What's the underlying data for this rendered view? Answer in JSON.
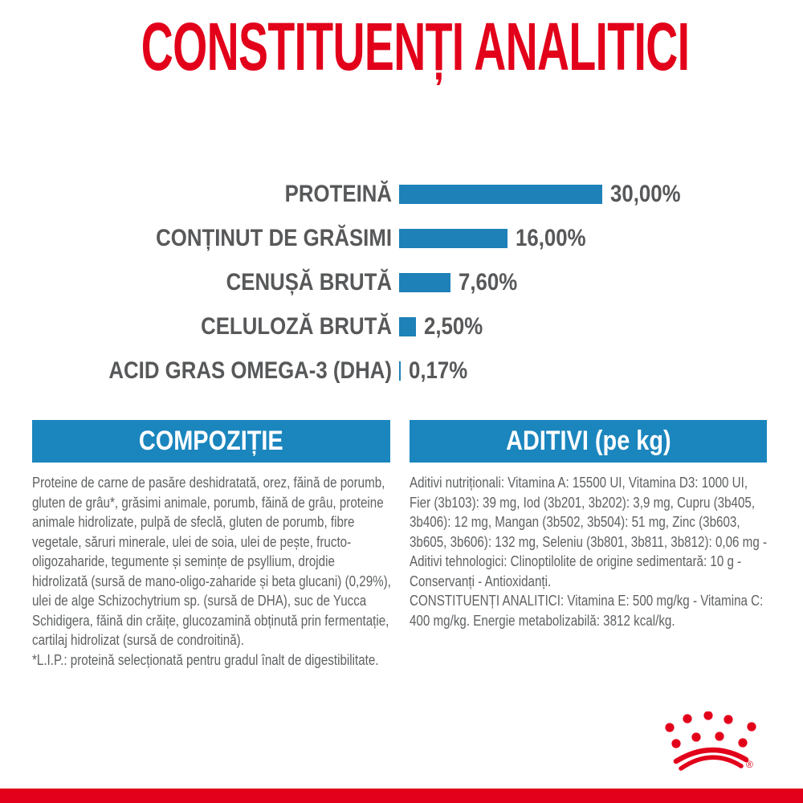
{
  "page": {
    "title": "CONSTITUENȚI ANALITICI"
  },
  "chart_data": {
    "type": "bar",
    "orientation": "horizontal",
    "title": "CONSTITUENȚI ANALITICI",
    "categories": [
      "PROTEINĂ",
      "CONȚINUT DE GRĂSIMI",
      "CENUȘĂ BRUTĂ",
      "CELULOZĂ BRUTĂ",
      "ACID GRAS OMEGA-3 (DHA)"
    ],
    "values": [
      30.0,
      16.0,
      7.6,
      2.5,
      0.17
    ],
    "value_labels": [
      "30,00%",
      "16,00%",
      "7,60%",
      "2,50%",
      "0,17%"
    ],
    "unit": "%",
    "xlim": [
      0,
      30
    ],
    "grid": false,
    "legend": false,
    "bar_color": "#1E81B8"
  },
  "sections": {
    "composition": {
      "header": "COMPOZIȚIE",
      "body": "Proteine de carne de pasăre deshidratată, orez, făină de porumb, gluten de grâu*, grăsimi animale, porumb, făină de grâu, proteine animale hidrolizate, pulpă de sfeclă, gluten de porumb, fibre vegetale, săruri minerale, ulei de soia, ulei de pește, fructo-oligozaharide, tegumente și semințe de psyllium, drojdie hidrolizată (sursă de mano-oligo-zaharide și beta glucani) (0,29%), ulei de alge Schizochytrium sp. (sursă de DHA), suc de Yucca Schidigera, făină din crăițe, glucozamină obținută prin fermentație, cartilaj hidrolizat (sursă de condroitină).",
      "footnote": "*L.I.P.: proteină selecționată pentru gradul înalt de digestibilitate."
    },
    "additives": {
      "header": "ADITIVI (pe kg)",
      "body": "Aditivi nutriționali: Vitamina A: 15500 UI, Vitamina D3: 1000 UI, Fier (3b103): 39 mg, Iod (3b201, 3b202): 3,9 mg, Cupru (3b405, 3b406): 12 mg, Mangan (3b502, 3b504): 51 mg, Zinc (3b603, 3b605, 3b606): 132 mg, Seleniu (3b801, 3b811, 3b812): 0,06 mg - Aditivi tehnologici: Clinoptilolite de origine sedimentară: 10 g - Conservanți - Antioxidanți.",
      "analytical": "CONSTITUENȚI ANALITICI: Vitamina E: 500 mg/kg - Vitamina C: 400 mg/kg. Energie metabolizabilă: 3812 kcal/kg."
    }
  },
  "branding": {
    "logo": "royal-canin-crown",
    "registered_mark": "®"
  },
  "colors": {
    "brand_red": "#E2001A",
    "bar_blue": "#1E81B8",
    "header_blue": "#1B86BE",
    "label_gray": "#57585A",
    "body_gray": "#5F6163"
  }
}
